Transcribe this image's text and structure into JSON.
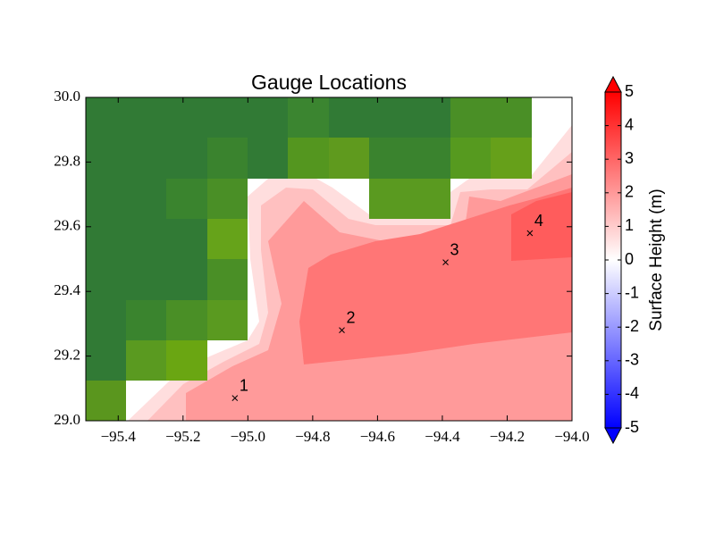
{
  "chart_data": {
    "type": "scatter",
    "title": "Gauge Locations",
    "xlim": [
      -95.5,
      -94.0
    ],
    "xticks": [
      {
        "value": -95.4,
        "label": "−95.4"
      },
      {
        "value": -95.2,
        "label": "−95.2"
      },
      {
        "value": -95.0,
        "label": "−95.0"
      },
      {
        "value": -94.8,
        "label": "−94.8"
      },
      {
        "value": -94.6,
        "label": "−94.6"
      },
      {
        "value": -94.4,
        "label": "−94.4"
      },
      {
        "value": -94.2,
        "label": "−94.2"
      },
      {
        "value": -94.0,
        "label": "−94.0"
      }
    ],
    "ylim": [
      29.0,
      30.0
    ],
    "yticks": [
      {
        "value": 29.0,
        "label": "29.0"
      },
      29.2,
      29.4,
      29.6,
      29.8,
      {
        "value": 30.0,
        "label": "30.0"
      }
    ],
    "x": [
      -95.04,
      -94.71,
      -94.39,
      -94.13
    ],
    "values": [
      29.07,
      29.28,
      29.49,
      29.58
    ],
    "point_labels": [
      "1",
      "2",
      "3",
      "4"
    ],
    "marker_color": "#000000",
    "colorbar": {
      "label": "Surface Height (m)",
      "lim": [
        -5,
        5
      ],
      "ticks": [
        5,
        4,
        3,
        2,
        1,
        0,
        -1,
        -2,
        -3,
        -4,
        -5
      ]
    }
  }
}
